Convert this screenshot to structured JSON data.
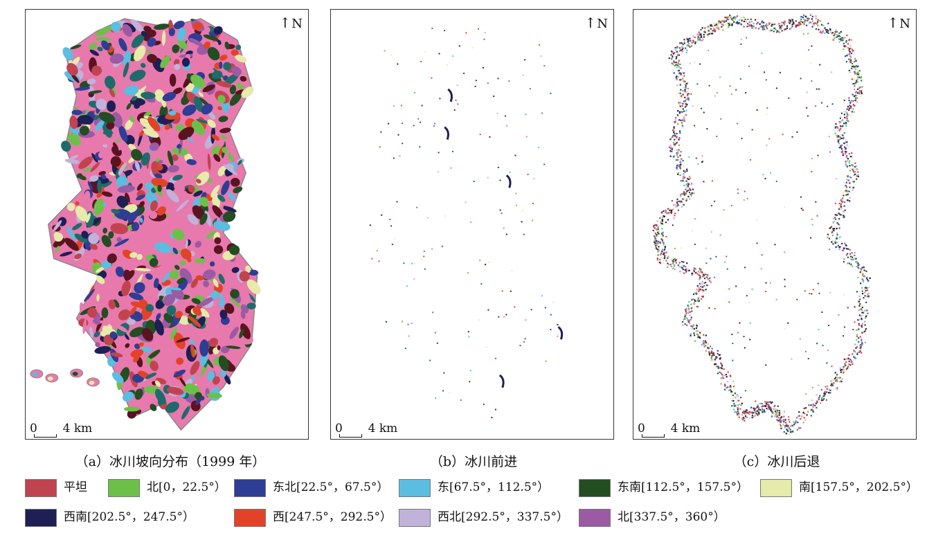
{
  "panels": [
    {
      "id": "a",
      "caption": "（a）冰川坡向分布（1999 年）",
      "north": "N",
      "scale_zero": "0",
      "scale_label": "4 km"
    },
    {
      "id": "b",
      "caption": "（b）冰川前进",
      "north": "N",
      "scale_zero": "0",
      "scale_label": "4 km"
    },
    {
      "id": "c",
      "caption": "（c）冰川后退",
      "north": "N",
      "scale_zero": "0",
      "scale_label": "4 km"
    }
  ],
  "legend": [
    {
      "label": "平坦",
      "color": "#c0444f"
    },
    {
      "label": "北[0，22.5°）",
      "color": "#6cc04a"
    },
    {
      "label": "东北[22.5°，67.5°）",
      "color": "#2f3d95"
    },
    {
      "label": "东[67.5°，112.5°）",
      "color": "#5bbde0"
    },
    {
      "label": "东南[112.5°，157.5°）",
      "color": "#234d22"
    },
    {
      "label": "南[157.5°，202.5°）",
      "color": "#e6eaaa"
    },
    {
      "label": "西南[202.5°，247.5°）",
      "color": "#1e1f55"
    },
    {
      "label": "西[247.5°，292.5°）",
      "color": "#e24327"
    },
    {
      "label": "西北[292.5°，337.5°）",
      "color": "#c1b2d9"
    },
    {
      "label": "北[337.5°，360°）",
      "color": "#9c5aa4"
    }
  ],
  "extra_colors": {
    "pink": "#e879ad",
    "teal": "#1f6b6b",
    "maroon": "#5a1420"
  }
}
